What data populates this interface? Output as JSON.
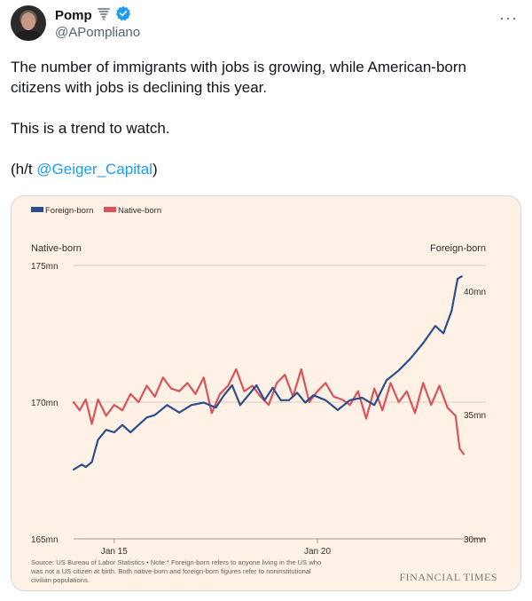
{
  "user": {
    "display_name": "Pomp",
    "handle": "@APompliano",
    "emoji_icon": "tornado-emoji",
    "verified_color": "#1d9bf0"
  },
  "tweet": {
    "line1": "The number of immigrants with jobs is growing, while American-born citizens with jobs is declining this year.",
    "line2": "This is a trend to watch.",
    "ht_prefix": "(h/t ",
    "ht_link": "@Geiger_Capital",
    "ht_suffix": ")"
  },
  "chart_data": {
    "type": "line",
    "legend": [
      "Foreign-born",
      "Native-born"
    ],
    "left_axis_title": "Native-born",
    "right_axis_title": "Foreign-born",
    "left_ticks": [
      "175mn",
      "170mn",
      "165mn"
    ],
    "right_ticks": [
      "40mn",
      "35mn",
      "30mn"
    ],
    "x_ticks": [
      "Jan 15",
      "Jan 20"
    ],
    "left_ylim": [
      165,
      175
    ],
    "right_ylim": [
      30,
      41
    ],
    "x_range": [
      2014.0,
      2023.6
    ],
    "series": [
      {
        "name": "Foreign-born",
        "axis": "right",
        "color": "#2b4f8c",
        "points": [
          [
            2014.0,
            32.8
          ],
          [
            2014.2,
            33.0
          ],
          [
            2014.3,
            32.9
          ],
          [
            2014.45,
            33.1
          ],
          [
            2014.6,
            34.0
          ],
          [
            2014.8,
            34.4
          ],
          [
            2015.0,
            34.3
          ],
          [
            2015.2,
            34.6
          ],
          [
            2015.4,
            34.3
          ],
          [
            2015.6,
            34.6
          ],
          [
            2015.8,
            34.9
          ],
          [
            2016.0,
            35.0
          ],
          [
            2016.3,
            35.4
          ],
          [
            2016.6,
            35.1
          ],
          [
            2016.9,
            35.4
          ],
          [
            2017.2,
            35.5
          ],
          [
            2017.5,
            35.3
          ],
          [
            2017.7,
            35.8
          ],
          [
            2017.9,
            36.2
          ],
          [
            2018.1,
            35.4
          ],
          [
            2018.3,
            35.8
          ],
          [
            2018.5,
            36.2
          ],
          [
            2018.7,
            35.6
          ],
          [
            2018.9,
            36.1
          ],
          [
            2019.1,
            35.6
          ],
          [
            2019.3,
            35.6
          ],
          [
            2019.5,
            35.9
          ],
          [
            2019.7,
            35.5
          ],
          [
            2019.9,
            35.8
          ],
          [
            2020.2,
            35.6
          ],
          [
            2020.5,
            35.2
          ],
          [
            2020.8,
            35.6
          ],
          [
            2021.1,
            35.7
          ],
          [
            2021.4,
            35.4
          ],
          [
            2021.7,
            36.4
          ],
          [
            2022.0,
            36.8
          ],
          [
            2022.3,
            37.3
          ],
          [
            2022.6,
            37.9
          ],
          [
            2022.9,
            38.6
          ],
          [
            2023.1,
            38.3
          ],
          [
            2023.3,
            39.2
          ],
          [
            2023.45,
            40.5
          ],
          [
            2023.55,
            40.6
          ]
        ]
      },
      {
        "name": "Native-born",
        "axis": "left",
        "color": "#d9535b",
        "points": [
          [
            2014.0,
            170.0
          ],
          [
            2014.15,
            169.7
          ],
          [
            2014.3,
            170.1
          ],
          [
            2014.45,
            169.2
          ],
          [
            2014.6,
            170.1
          ],
          [
            2014.8,
            169.5
          ],
          [
            2015.0,
            169.9
          ],
          [
            2015.2,
            169.7
          ],
          [
            2015.4,
            170.3
          ],
          [
            2015.6,
            170.0
          ],
          [
            2015.8,
            170.6
          ],
          [
            2016.0,
            170.2
          ],
          [
            2016.2,
            170.9
          ],
          [
            2016.4,
            170.5
          ],
          [
            2016.6,
            170.4
          ],
          [
            2016.8,
            170.7
          ],
          [
            2017.0,
            170.3
          ],
          [
            2017.2,
            170.9
          ],
          [
            2017.4,
            169.6
          ],
          [
            2017.6,
            170.3
          ],
          [
            2017.8,
            170.6
          ],
          [
            2018.0,
            171.2
          ],
          [
            2018.2,
            170.4
          ],
          [
            2018.4,
            170.6
          ],
          [
            2018.6,
            170.2
          ],
          [
            2018.8,
            169.9
          ],
          [
            2019.0,
            170.7
          ],
          [
            2019.2,
            171.0
          ],
          [
            2019.4,
            170.2
          ],
          [
            2019.6,
            171.2
          ],
          [
            2019.8,
            170.0
          ],
          [
            2020.0,
            170.4
          ],
          [
            2020.2,
            170.7
          ],
          [
            2020.4,
            170.2
          ],
          [
            2020.6,
            170.1
          ],
          [
            2020.8,
            169.9
          ],
          [
            2021.0,
            170.4
          ],
          [
            2021.2,
            169.4
          ],
          [
            2021.4,
            170.5
          ],
          [
            2021.6,
            169.7
          ],
          [
            2021.8,
            170.7
          ],
          [
            2022.0,
            170.0
          ],
          [
            2022.2,
            170.4
          ],
          [
            2022.4,
            169.6
          ],
          [
            2022.6,
            170.7
          ],
          [
            2022.8,
            169.9
          ],
          [
            2023.0,
            170.6
          ],
          [
            2023.2,
            169.8
          ],
          [
            2023.4,
            169.5
          ],
          [
            2023.5,
            168.3
          ],
          [
            2023.6,
            168.1
          ]
        ]
      }
    ],
    "source_text": "Source: US Bureau of Labor Statistics • Note:* Foreign-born refers to anyone living in the US who was not a US citizen at birth. Both native-born and foreign-born figures refer to noninstitutional civilian populations.",
    "source_lines": [
      "Source: US Bureau of Labor Statistics • Note:* Foreign-born refers to anyone living in the US who",
      "was not a US citizen at birth. Both native-born and foreign-born figures refer to noninstitutional",
      "civilian populations."
    ],
    "brand": "FINANCIAL TIMES",
    "background_color": "#fff1e5",
    "grid_color": "#d9cbbf"
  }
}
